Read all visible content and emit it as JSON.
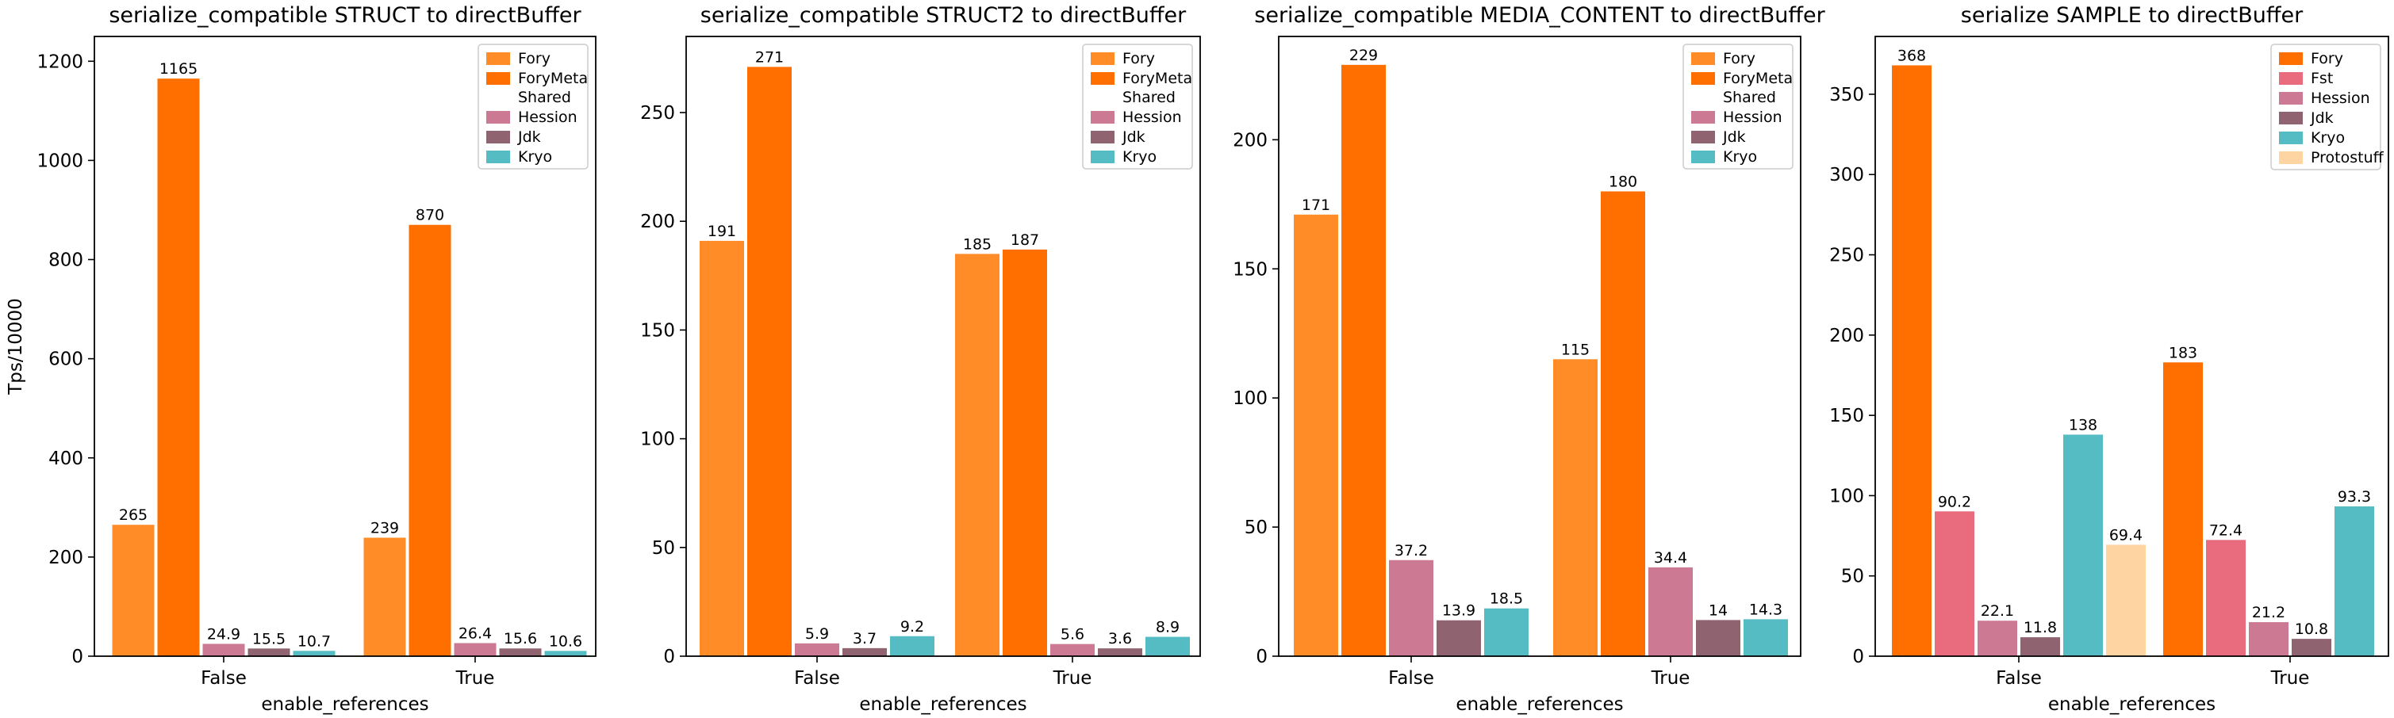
{
  "chart_data": [
    {
      "type": "bar",
      "title": "serialize_compatible STRUCT to directBuffer",
      "xlabel": "enable_references",
      "ylabel": "Tps/10000",
      "categories": [
        "False",
        "True"
      ],
      "ylim": [
        0,
        1250
      ],
      "yticks": [
        0,
        200,
        400,
        600,
        800,
        1000,
        1200
      ],
      "legend_position": "top-right",
      "series": [
        {
          "name": "Fory",
          "color": "#ff8c26",
          "values": [
            265,
            239
          ],
          "labels": [
            "265",
            "239"
          ]
        },
        {
          "name": "ForyMeta Shared",
          "color": "#ff6f00",
          "values": [
            1165,
            870
          ],
          "labels": [
            "1165",
            "870"
          ]
        },
        {
          "name": "Hession",
          "color": "#cc7a93",
          "values": [
            24.9,
            26.4
          ],
          "labels": [
            "24.9",
            "26.4"
          ]
        },
        {
          "name": "Jdk",
          "color": "#8f6470",
          "values": [
            15.5,
            15.6
          ],
          "labels": [
            "15.5",
            "15.6"
          ]
        },
        {
          "name": "Kryo",
          "color": "#55bcc3",
          "values": [
            10.7,
            10.6
          ],
          "labels": [
            "10.7",
            "10.6"
          ]
        }
      ]
    },
    {
      "type": "bar",
      "title": "serialize_compatible STRUCT2 to directBuffer",
      "xlabel": "enable_references",
      "ylabel": "",
      "categories": [
        "False",
        "True"
      ],
      "ylim": [
        0,
        285
      ],
      "yticks": [
        0,
        50,
        100,
        150,
        200,
        250
      ],
      "legend_position": "top-right",
      "series": [
        {
          "name": "Fory",
          "color": "#ff8c26",
          "values": [
            191,
            185
          ],
          "labels": [
            "191",
            "185"
          ]
        },
        {
          "name": "ForyMeta Shared",
          "color": "#ff6f00",
          "values": [
            271,
            187
          ],
          "labels": [
            "271",
            "187"
          ]
        },
        {
          "name": "Hession",
          "color": "#cc7a93",
          "values": [
            5.9,
            5.6
          ],
          "labels": [
            "5.9",
            "5.6"
          ]
        },
        {
          "name": "Jdk",
          "color": "#8f6470",
          "values": [
            3.7,
            3.6
          ],
          "labels": [
            "3.7",
            "3.6"
          ]
        },
        {
          "name": "Kryo",
          "color": "#55bcc3",
          "values": [
            9.2,
            8.9
          ],
          "labels": [
            "9.2",
            "8.9"
          ]
        }
      ]
    },
    {
      "type": "bar",
      "title": "serialize_compatible MEDIA_CONTENT to directBuffer",
      "xlabel": "enable_references",
      "ylabel": "",
      "categories": [
        "False",
        "True"
      ],
      "ylim": [
        0,
        240
      ],
      "yticks": [
        0,
        50,
        100,
        150,
        200
      ],
      "legend_position": "top-right",
      "series": [
        {
          "name": "Fory",
          "color": "#ff8c26",
          "values": [
            171,
            115
          ],
          "labels": [
            "171",
            "115"
          ]
        },
        {
          "name": "ForyMeta Shared",
          "color": "#ff6f00",
          "values": [
            229,
            180
          ],
          "labels": [
            "229",
            "180"
          ]
        },
        {
          "name": "Hession",
          "color": "#cc7a93",
          "values": [
            37.2,
            34.4
          ],
          "labels": [
            "37.2",
            "34.4"
          ]
        },
        {
          "name": "Jdk",
          "color": "#8f6470",
          "values": [
            13.9,
            14
          ],
          "labels": [
            "13.9",
            "14"
          ]
        },
        {
          "name": "Kryo",
          "color": "#55bcc3",
          "values": [
            18.5,
            14.3
          ],
          "labels": [
            "18.5",
            "14.3"
          ]
        }
      ]
    },
    {
      "type": "bar",
      "title": "serialize SAMPLE to directBuffer",
      "xlabel": "enable_references",
      "ylabel": "",
      "categories": [
        "False",
        "True"
      ],
      "ylim": [
        0,
        386
      ],
      "yticks": [
        0,
        50,
        100,
        150,
        200,
        250,
        300,
        350
      ],
      "legend_position": "top-right",
      "series": [
        {
          "name": "Fory",
          "color": "#ff6f00",
          "values": [
            368,
            183
          ],
          "labels": [
            "368",
            "183"
          ]
        },
        {
          "name": "Fst",
          "color": "#e96c7e",
          "values": [
            90.2,
            72.4
          ],
          "labels": [
            "90.2",
            "72.4"
          ]
        },
        {
          "name": "Hession",
          "color": "#cc7a93",
          "values": [
            22.1,
            21.2
          ],
          "labels": [
            "22.1",
            "21.2"
          ]
        },
        {
          "name": "Jdk",
          "color": "#8f6470",
          "values": [
            11.8,
            10.8
          ],
          "labels": [
            "11.8",
            "10.8"
          ]
        },
        {
          "name": "Kryo",
          "color": "#55bcc3",
          "values": [
            138,
            93.3
          ],
          "labels": [
            "138",
            "93.3"
          ]
        },
        {
          "name": "Protostuff",
          "color": "#ffd4a3",
          "values": [
            69.4,
            null
          ],
          "labels": [
            "69.4",
            ""
          ]
        }
      ]
    }
  ]
}
